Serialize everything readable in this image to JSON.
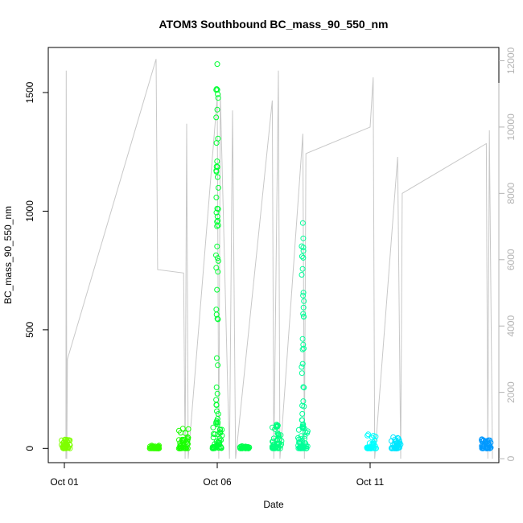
{
  "chart_data": {
    "type": "scatter",
    "title": "ATOM3 Southbound BC_mass_90_550_nm",
    "xlabel": "Date",
    "ylabel": "BC_mass_90_550_nm",
    "x_ticks": [
      "Oct 01",
      "Oct 06",
      "Oct 11"
    ],
    "x_range_days": [
      0.0,
      15.0
    ],
    "y_ticks": [
      0,
      500,
      1000,
      1500
    ],
    "y_range": [
      -60,
      1690
    ],
    "y_right_ticks": [
      0,
      2000,
      4000,
      6000,
      8000,
      10000,
      12000
    ],
    "y_right_range": [
      -120,
      12400
    ],
    "series": [
      {
        "marker": "open-circle",
        "color_by": "time (hue)",
        "clusters": [
          {
            "day": 0.05,
            "y_max": 45,
            "color": "#7FFF00"
          },
          {
            "day": 2.95,
            "y_max": 12,
            "color": "#33FF00"
          },
          {
            "day": 3.9,
            "y_max": 85,
            "color": "#19FF00"
          },
          {
            "day": 5.0,
            "y_max": 1620,
            "color": "#00FF33"
          },
          {
            "day": 5.9,
            "y_max": 10,
            "color": "#00FF4D"
          },
          {
            "day": 6.95,
            "y_max": 100,
            "color": "#00FF80"
          },
          {
            "day": 7.8,
            "y_max": 950,
            "color": "#00FF99"
          },
          {
            "day": 10.05,
            "y_max": 65,
            "color": "#00FFFF"
          },
          {
            "day": 10.85,
            "y_max": 50,
            "color": "#00E6FF"
          },
          {
            "day": 13.8,
            "y_max": 45,
            "color": "#0099FF"
          }
        ]
      },
      {
        "marker": "line",
        "color": "#c8c8c8",
        "axis": "right",
        "vertices": [
          [
            0.05,
            0
          ],
          [
            0.06,
            11700
          ],
          [
            0.08,
            0
          ],
          [
            0.1,
            3000
          ],
          [
            3.0,
            12050
          ],
          [
            3.05,
            5700
          ],
          [
            3.9,
            5600
          ],
          [
            3.95,
            0
          ],
          [
            4.0,
            10100
          ],
          [
            4.05,
            0
          ],
          [
            5.0,
            10900
          ],
          [
            5.05,
            0
          ],
          [
            5.1,
            11000
          ],
          [
            5.4,
            0
          ],
          [
            5.5,
            10500
          ],
          [
            5.6,
            0
          ],
          [
            6.8,
            10800
          ],
          [
            6.85,
            0
          ],
          [
            7.0,
            11700
          ],
          [
            7.05,
            0
          ],
          [
            7.8,
            9800
          ],
          [
            7.85,
            0
          ],
          [
            7.9,
            9200
          ],
          [
            10.0,
            10000
          ],
          [
            10.1,
            11500
          ],
          [
            10.15,
            0
          ],
          [
            10.9,
            9100
          ],
          [
            11.0,
            0
          ],
          [
            11.05,
            8000
          ],
          [
            13.8,
            9500
          ],
          [
            13.85,
            0
          ],
          [
            13.9,
            9900
          ],
          [
            14.0,
            0
          ]
        ]
      }
    ],
    "grid": false,
    "legend": "none",
    "background": "#ffffff",
    "frame_color": "#000000",
    "right_axis_color": "#b3b3b3"
  }
}
